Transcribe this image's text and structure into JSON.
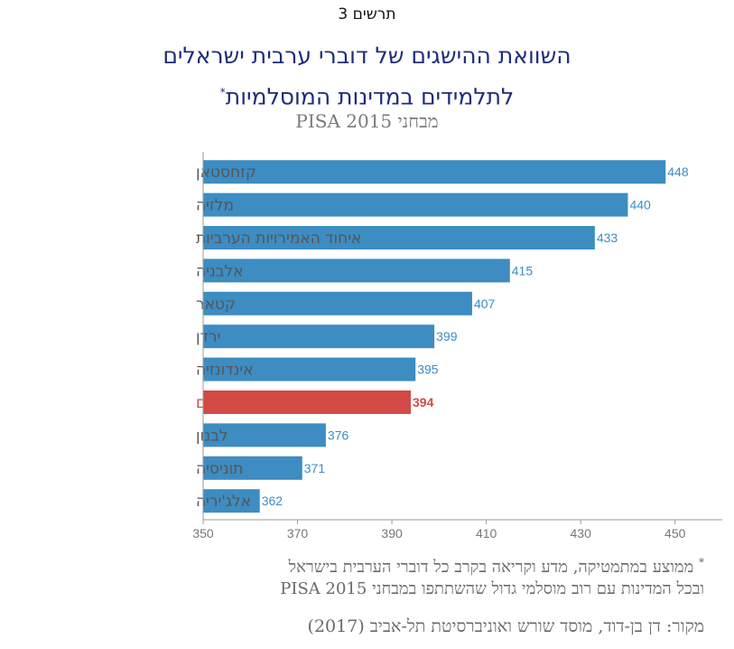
{
  "figure_label": "תרשים 3",
  "title_line1": "השוואת ההישגים של דוברי ערבית ישראלים",
  "title_line2": "לתלמידים במדינות המוסלמיות",
  "title_mark": "*",
  "subtitle": "מבחני PISA 2015",
  "footnote_mark": "*",
  "footnote_line1": "ממוצע במתמטיקה, מדע וקריאה בקרב כל דוברי הערבית בישראל",
  "footnote_line2": "ובכל המדינות עם רוב מוסלמי גדול שהשתתפו במבחני PISA 2015",
  "source": "מקור: דן בן-דוד, מוסד שורש ואוניברסיטת תל-אביב (2017)",
  "colors": {
    "bar": "#3d8cc2",
    "highlight": "#d24a45",
    "value_text": "#3d8cc2",
    "label_text": "#555555"
  },
  "chart_data": {
    "type": "bar",
    "orientation": "horizontal",
    "categories": [
      "קזחסטאן",
      "מלזיה",
      "איחוד האמירויות הערביות",
      "אלבניה",
      "קטאר",
      "ירדן",
      "אינדונזיה",
      "דוברי ערבית ישראלים",
      "לבנון",
      "תוניסיה",
      "אלג'יריה"
    ],
    "values": [
      448,
      440,
      433,
      415,
      407,
      399,
      395,
      394,
      376,
      371,
      362
    ],
    "highlight_index": 7,
    "xlim": [
      350,
      460
    ],
    "xticks": [
      350,
      370,
      390,
      410,
      430,
      450
    ],
    "grid": false
  }
}
